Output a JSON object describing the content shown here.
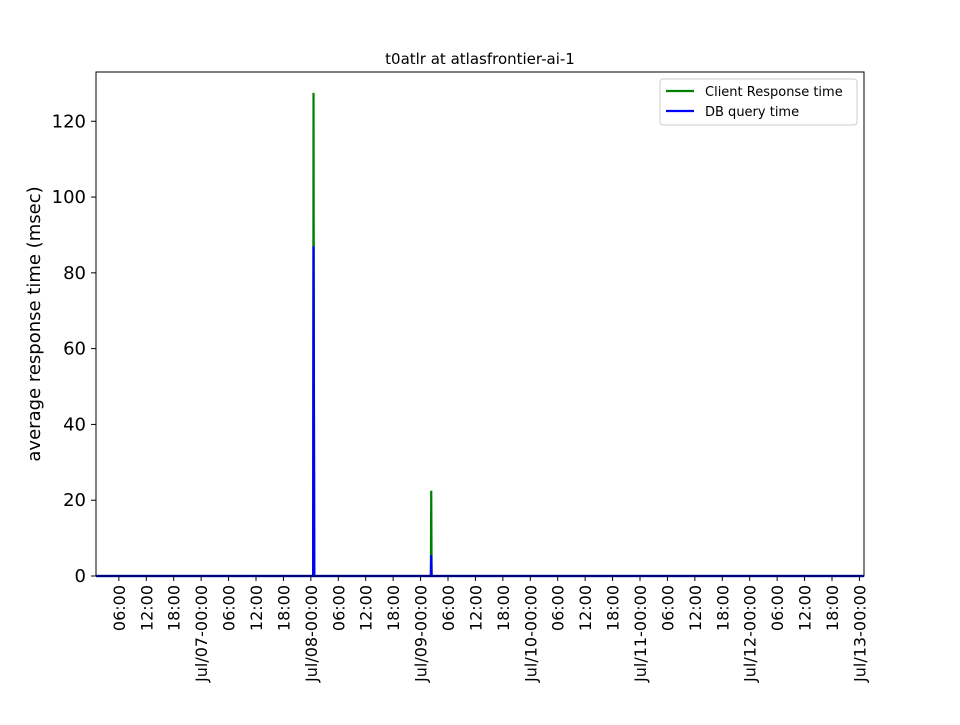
{
  "chart_data": {
    "type": "line",
    "title": "t0atlr at atlasfrontier-ai-1",
    "xlabel": "",
    "ylabel": "average response time (msec)",
    "x_axis": {
      "kind": "datetime",
      "start": "2024-07-06T01:00",
      "end": "2024-07-13T01:00",
      "tick_labels": [
        "06:00",
        "12:00",
        "18:00",
        "Jul/07-00:00",
        "06:00",
        "12:00",
        "18:00",
        "Jul/08-00:00",
        "06:00",
        "12:00",
        "18:00",
        "Jul/09-00:00",
        "06:00",
        "12:00",
        "18:00",
        "Jul/10-00:00",
        "06:00",
        "12:00",
        "18:00",
        "Jul/11-00:00",
        "06:00",
        "12:00",
        "18:00",
        "Jul/12-00:00",
        "06:00",
        "12:00",
        "18:00",
        "Jul/13-00:00"
      ],
      "tick_values": [
        "2024-07-06T06:00",
        "2024-07-06T12:00",
        "2024-07-06T18:00",
        "2024-07-07T00:00",
        "2024-07-07T06:00",
        "2024-07-07T12:00",
        "2024-07-07T18:00",
        "2024-07-08T00:00",
        "2024-07-08T06:00",
        "2024-07-08T12:00",
        "2024-07-08T18:00",
        "2024-07-09T00:00",
        "2024-07-09T06:00",
        "2024-07-09T12:00",
        "2024-07-09T18:00",
        "2024-07-10T00:00",
        "2024-07-10T06:00",
        "2024-07-10T12:00",
        "2024-07-10T18:00",
        "2024-07-11T00:00",
        "2024-07-11T06:00",
        "2024-07-11T12:00",
        "2024-07-11T18:00",
        "2024-07-12T00:00",
        "2024-07-12T06:00",
        "2024-07-12T12:00",
        "2024-07-12T18:00",
        "2024-07-13T00:00"
      ]
    },
    "y_axis": {
      "ylim": [
        0,
        133
      ],
      "ticks": [
        0,
        20,
        40,
        60,
        80,
        100,
        120
      ]
    },
    "grid": false,
    "legend_position": "top-right",
    "series": [
      {
        "name": "Client Response time",
        "color": "#008000",
        "points": [
          [
            "2024-07-06T01:00",
            0
          ],
          [
            "2024-07-08T00:30",
            0
          ],
          [
            "2024-07-08T00:35",
            127.5
          ],
          [
            "2024-07-08T00:40",
            50
          ],
          [
            "2024-07-08T00:45",
            0
          ],
          [
            "2024-07-09T02:15",
            0
          ],
          [
            "2024-07-09T02:20",
            22.5
          ],
          [
            "2024-07-09T02:25",
            0
          ],
          [
            "2024-07-13T01:00",
            0
          ]
        ]
      },
      {
        "name": "DB query time",
        "color": "#0000ff",
        "points": [
          [
            "2024-07-06T01:00",
            0
          ],
          [
            "2024-07-08T00:30",
            0
          ],
          [
            "2024-07-08T00:35",
            87
          ],
          [
            "2024-07-08T00:40",
            50
          ],
          [
            "2024-07-08T00:45",
            0
          ],
          [
            "2024-07-09T02:15",
            0
          ],
          [
            "2024-07-09T02:20",
            5.5
          ],
          [
            "2024-07-09T02:25",
            0
          ],
          [
            "2024-07-13T01:00",
            0
          ]
        ]
      }
    ]
  }
}
